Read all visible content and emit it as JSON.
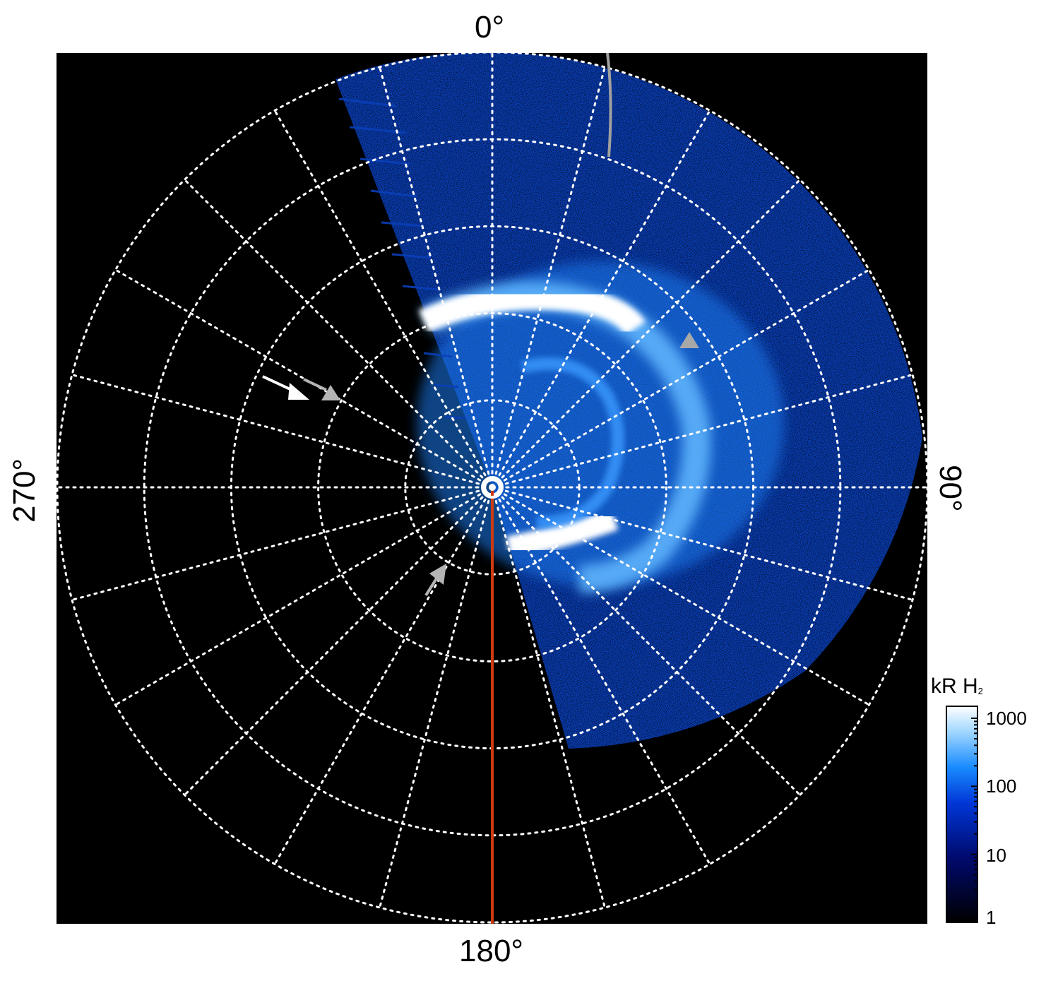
{
  "figure": {
    "labels": {
      "top": "0°",
      "right": "90°",
      "bottom": "180°",
      "left": "270°"
    },
    "colorbar": {
      "title_main": "kR H",
      "title_sub": "2",
      "ticks": [
        "1000",
        "100",
        "10",
        "1"
      ],
      "scale": "log",
      "range": [
        1,
        1500
      ],
      "colors": [
        "#000000",
        "#000a6e",
        "#0036d6",
        "#1a8cff",
        "#9fd6ff",
        "#ffffff"
      ]
    },
    "colors": {
      "background": "#000000",
      "grid": "#ffffff",
      "meridian_line": "#d03a10",
      "track_line": "#a0a0a0",
      "arrow_white": "#ffffff",
      "arrow_gray": "#b4b4b4"
    }
  }
}
